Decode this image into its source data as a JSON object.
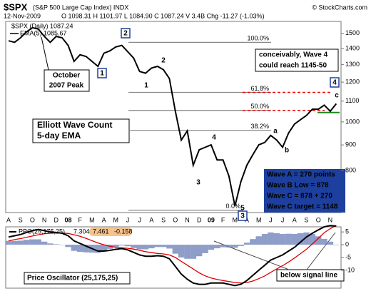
{
  "chart_data": [
    {
      "type": "line",
      "title": "$SPX",
      "subtitle": "(S&P 500 Large Cap Index) INDX",
      "source": "© StockCharts.com",
      "date": "12-Nov-2009",
      "quote": "O 1098.31 H 1101.97 L 1084.90 C 1087.24 V 3.4B Chg -11.27 (-1.03%)",
      "legend_title": "$SPX (Daily) 1087.24",
      "log_scale": true,
      "categories": [
        "A",
        null,
        "S",
        null,
        "O",
        null,
        "N",
        null,
        "D",
        null,
        "08",
        null,
        "F",
        null,
        "M",
        null,
        "A",
        null,
        "M",
        null,
        "J",
        null,
        "J",
        null,
        "A",
        null,
        "S",
        null,
        "O",
        null,
        "N",
        null,
        "D",
        null,
        "09",
        null,
        "F",
        null,
        "M",
        null,
        "A",
        null,
        "M",
        null,
        "J",
        null,
        "J",
        null,
        "A",
        null,
        "S",
        null,
        "O",
        null,
        "N",
        null
      ],
      "series": [
        {
          "name": "EMA(5) 1085.67",
          "color": "#000000",
          "values": [
            1450,
            1440,
            1470,
            1510,
            1540,
            1530,
            1480,
            1440,
            1480,
            1470,
            1420,
            1320,
            1360,
            1350,
            1320,
            1290,
            1370,
            1385,
            1410,
            1420,
            1380,
            1340,
            1260,
            1250,
            1280,
            1290,
            1270,
            1220,
            1050,
            920,
            960,
            820,
            880,
            890,
            900,
            840,
            840,
            780,
            680,
            760,
            820,
            860,
            900,
            910,
            940,
            920,
            890,
            950,
            990,
            1010,
            1030,
            1060,
            1060,
            1080,
            1050,
            1087
          ]
        }
      ],
      "ylim": [
        660,
        1585
      ],
      "yticks": [
        800,
        900,
        1000,
        1100,
        1200,
        1300,
        1400,
        1500
      ],
      "fib_levels": [
        {
          "value": 1440,
          "label": "100.0%"
        },
        {
          "value": 1145,
          "label": "61.8%"
        },
        {
          "value": 1054,
          "label": "50.0%"
        },
        {
          "value": 962,
          "label": "38.2%"
        },
        {
          "value": 667,
          "label": "0.0%"
        }
      ],
      "support_level": 1044,
      "wave_boxes": [
        "1",
        "2",
        "3",
        "4"
      ],
      "wave_red": [
        "1",
        "2",
        "3",
        "4",
        "5"
      ],
      "wave_green": [
        "a",
        "b",
        "c"
      ],
      "notes": {
        "peak": [
          "October",
          "2007 Peak"
        ],
        "count": [
          "Elliott Wave Count",
          "5-day EMA"
        ],
        "target": [
          "conceivably, Wave 4",
          "could reach 1145-50"
        ],
        "waves": [
          "Wave A = 270 points",
          "Wave B Low = 878",
          "Wave C = 878 + 270",
          "Wave C target = 1148"
        ]
      }
    },
    {
      "type": "ppo",
      "title": "PPO(25,175,25)",
      "series": [
        {
          "name": "7.304",
          "color": "#000000",
          "values": [
            3.0,
            3.5,
            4.0,
            4.8,
            5.5,
            6.0,
            5.5,
            5.0,
            4.8,
            4.5,
            3.5,
            1.5,
            0.5,
            -0.5,
            -1.5,
            -2.5,
            -2.5,
            -2.2,
            -1.8,
            -1.5,
            -2.0,
            -3.0,
            -4.0,
            -4.5,
            -4.5,
            -4.3,
            -4.5,
            -5.5,
            -8.5,
            -11.5,
            -13.5,
            -15.0,
            -15.5,
            -15.5,
            -15.0,
            -15.0,
            -15.0,
            -15.5,
            -16.0,
            -15.5,
            -14.0,
            -12.0,
            -10.0,
            -8.0,
            -6.0,
            -5.0,
            -4.0,
            -2.5,
            -1.0,
            1.0,
            3.0,
            4.5,
            5.8,
            7.0,
            7.5,
            7.304
          ]
        },
        {
          "name": "7.461",
          "color": "#e00000",
          "values": [
            1.5,
            2.0,
            2.4,
            2.9,
            3.4,
            3.9,
            4.3,
            4.5,
            4.6,
            4.6,
            4.4,
            3.9,
            3.3,
            2.5,
            1.6,
            0.7,
            0.0,
            -0.6,
            -1.0,
            -1.2,
            -1.4,
            -1.7,
            -2.2,
            -2.7,
            -3.1,
            -3.4,
            -3.6,
            -4.0,
            -5.0,
            -6.5,
            -8.0,
            -9.5,
            -11.0,
            -12.2,
            -13.0,
            -13.6,
            -14.0,
            -14.4,
            -14.8,
            -15.0,
            -14.8,
            -14.2,
            -13.3,
            -12.2,
            -10.8,
            -9.5,
            -8.2,
            -6.8,
            -5.2,
            -3.5,
            -1.8,
            0.3,
            2.5,
            4.7,
            6.3,
            7.461
          ]
        },
        {
          "name": "-0.158",
          "color": "#6a7db5",
          "values": [
            1.5,
            1.5,
            1.6,
            1.9,
            2.1,
            2.1,
            1.2,
            0.5,
            0.2,
            -0.1,
            -0.9,
            -2.4,
            -2.8,
            -3.0,
            -3.1,
            -3.2,
            -2.5,
            -1.6,
            -0.8,
            -0.3,
            -0.6,
            -1.3,
            -1.8,
            -1.8,
            -1.4,
            -0.9,
            -0.9,
            -1.5,
            -3.5,
            -5.0,
            -5.5,
            -5.5,
            -4.5,
            -3.3,
            -2.0,
            -1.4,
            -1.0,
            -1.1,
            -1.2,
            -0.5,
            0.8,
            2.2,
            3.3,
            4.2,
            4.8,
            4.5,
            4.2,
            4.3,
            4.2,
            4.5,
            4.8,
            4.2,
            3.3,
            2.3,
            1.2,
            -0.158
          ]
        }
      ],
      "ylim": [
        -17,
        7
      ],
      "yticks": [
        -10,
        -5,
        0,
        5
      ],
      "notes": {
        "name": "Price Oscillator (25,175,25)",
        "signal": "below signal line"
      }
    }
  ]
}
